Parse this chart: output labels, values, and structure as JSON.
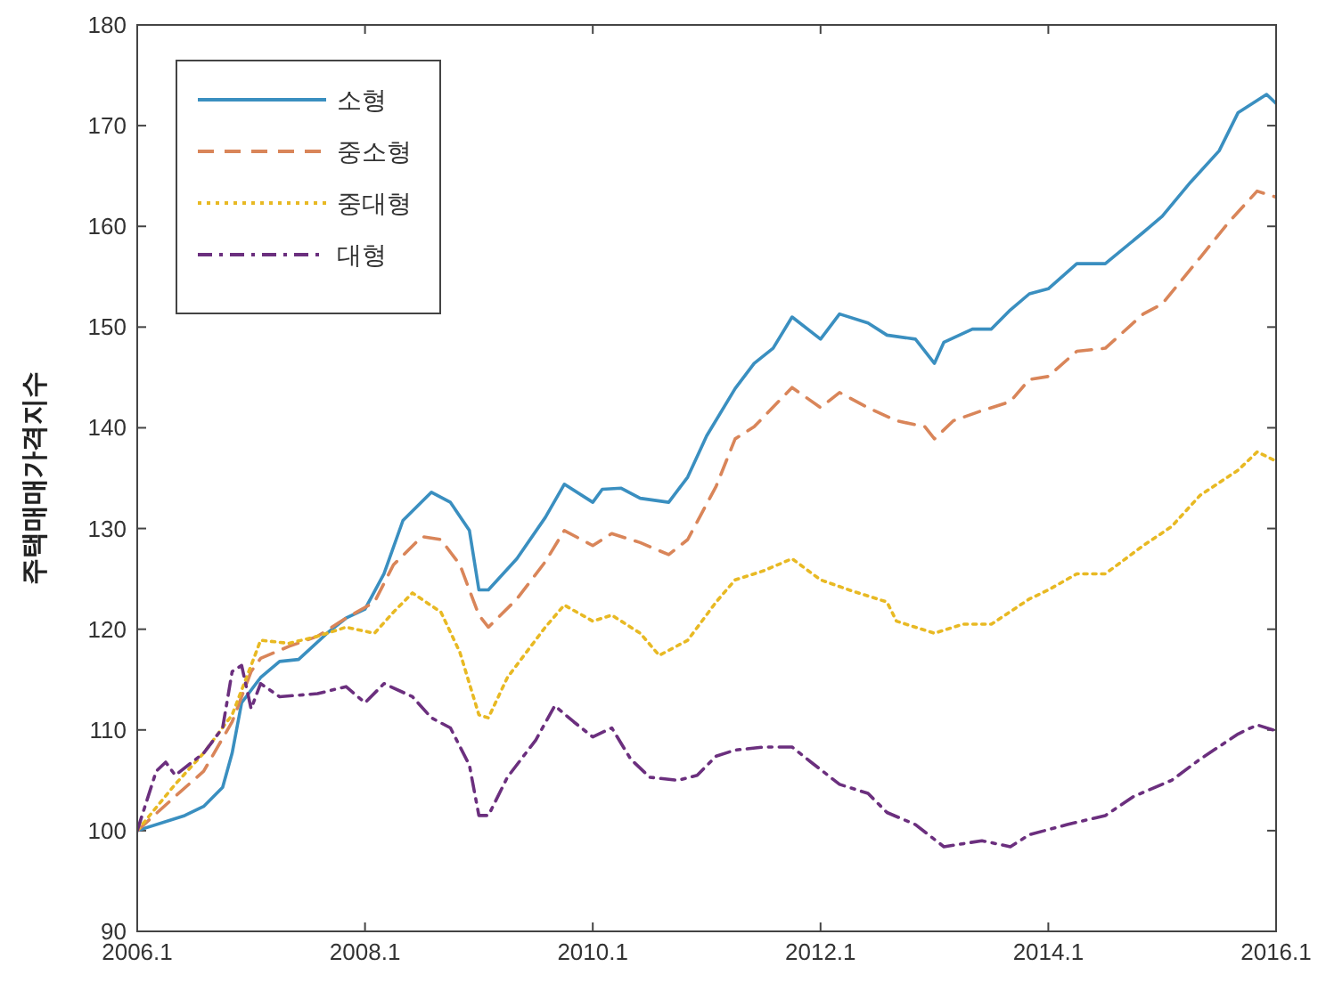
{
  "chart_data": {
    "type": "line",
    "ylabel": "주택매매가격지수",
    "xlim": [
      "2006-01",
      "2016-01"
    ],
    "ylim": [
      90,
      180
    ],
    "xticks": [
      {
        "value": "2006-01",
        "label": "2006.1"
      },
      {
        "value": "2008-01",
        "label": "2008.1"
      },
      {
        "value": "2010-01",
        "label": "2010.1"
      },
      {
        "value": "2012-01",
        "label": "2012.1"
      },
      {
        "value": "2014-01",
        "label": "2014.1"
      },
      {
        "value": "2016-01",
        "label": "2016.1"
      }
    ],
    "yticks": [
      90,
      100,
      110,
      120,
      130,
      140,
      150,
      160,
      170,
      180
    ],
    "grid": false,
    "legend": "top left",
    "series": [
      {
        "name": "소형",
        "color": "#3a8fc0",
        "line_style": "solid",
        "x": [
          "2006-01",
          "2006-06",
          "2006-08",
          "2006-10",
          "2006-11",
          "2006-12",
          "2007-02",
          "2007-04",
          "2007-06",
          "2007-09",
          "2007-11",
          "2008-01",
          "2008-03",
          "2008-05",
          "2008-08",
          "2008-10",
          "2008-12",
          "2009-01",
          "2009-02",
          "2009-05",
          "2009-08",
          "2009-10",
          "2010-01",
          "2010-02",
          "2010-04",
          "2010-06",
          "2010-09",
          "2010-11",
          "2011-01",
          "2011-04",
          "2011-06",
          "2011-08",
          "2011-10",
          "2012-01",
          "2012-03",
          "2012-06",
          "2012-08",
          "2012-11",
          "2013-01",
          "2013-02",
          "2013-05",
          "2013-07",
          "2013-09",
          "2013-11",
          "2014-01",
          "2014-04",
          "2014-07",
          "2014-11",
          "2015-01",
          "2015-04",
          "2015-07",
          "2015-09",
          "2015-12",
          "2016-01"
        ],
        "values": [
          100,
          101.5,
          102.4,
          104.3,
          107.7,
          112.7,
          115.2,
          116.8,
          117,
          119.6,
          121.1,
          122,
          125.5,
          130.8,
          133.6,
          132.6,
          129.8,
          123.9,
          123.9,
          127,
          131.1,
          134.4,
          132.6,
          133.9,
          134,
          133,
          132.6,
          135.1,
          139.2,
          143.9,
          146.4,
          147.9,
          151,
          148.8,
          151.3,
          150.4,
          149.2,
          148.8,
          146.4,
          148.5,
          149.8,
          149.8,
          151.7,
          153.3,
          153.8,
          156.3,
          156.3,
          159.4,
          161,
          164.4,
          167.5,
          171.3,
          173.1,
          172.2
        ]
      },
      {
        "name": "중소형",
        "color": "#d98559",
        "line_style": "dashed",
        "x": [
          "2006-01",
          "2006-05",
          "2006-08",
          "2006-11",
          "2007-01",
          "2007-02",
          "2007-05",
          "2007-08",
          "2007-11",
          "2008-02",
          "2008-04",
          "2008-07",
          "2008-09",
          "2008-11",
          "2009-01",
          "2009-02",
          "2009-05",
          "2009-08",
          "2009-10",
          "2010-01",
          "2010-03",
          "2010-06",
          "2010-09",
          "2010-11",
          "2011-02",
          "2011-04",
          "2011-06",
          "2011-10",
          "2012-01",
          "2012-03",
          "2012-06",
          "2012-09",
          "2012-12",
          "2013-01",
          "2013-03",
          "2013-06",
          "2013-09",
          "2013-11",
          "2014-01",
          "2014-04",
          "2014-07",
          "2014-11",
          "2015-01",
          "2015-05",
          "2015-08",
          "2015-11",
          "2016-01"
        ],
        "values": [
          100,
          103.4,
          105.9,
          110.8,
          115.8,
          117.1,
          118.3,
          119.3,
          121.1,
          122.7,
          126.4,
          129.2,
          128.9,
          126.4,
          121.4,
          120.2,
          123,
          126.7,
          129.8,
          128.3,
          129.5,
          128.6,
          127.4,
          128.9,
          134.2,
          138.9,
          140.1,
          144,
          142,
          143.5,
          142,
          140.7,
          140.1,
          138.9,
          140.7,
          141.7,
          142.6,
          144.8,
          145.1,
          147.6,
          147.9,
          151.3,
          152.3,
          156.9,
          160.4,
          163.5,
          162.9
        ]
      },
      {
        "name": "중대형",
        "color": "#e8b923",
        "line_style": "dotted",
        "x": [
          "2006-01",
          "2006-05",
          "2006-08",
          "2006-11",
          "2007-01",
          "2007-02",
          "2007-05",
          "2007-08",
          "2007-11",
          "2008-02",
          "2008-04",
          "2008-06",
          "2008-09",
          "2008-11",
          "2009-01",
          "2009-02",
          "2009-04",
          "2009-08",
          "2009-10",
          "2010-01",
          "2010-03",
          "2010-06",
          "2010-08",
          "2010-11",
          "2011-02",
          "2011-04",
          "2011-07",
          "2011-10",
          "2012-01",
          "2012-04",
          "2012-08",
          "2012-09",
          "2013-01",
          "2013-04",
          "2013-07",
          "2013-11",
          "2014-01",
          "2014-04",
          "2014-07",
          "2014-11",
          "2015-02",
          "2015-05",
          "2015-09",
          "2015-11",
          "2016-01"
        ],
        "values": [
          100,
          104.6,
          107.7,
          111.5,
          116.4,
          118.9,
          118.6,
          119.3,
          120.2,
          119.6,
          121.7,
          123.6,
          121.7,
          117.7,
          111.5,
          111.2,
          115.2,
          120.2,
          122.4,
          120.8,
          121.4,
          119.6,
          117.4,
          118.9,
          122.7,
          124.9,
          125.8,
          127,
          124.9,
          123.9,
          122.7,
          120.8,
          119.6,
          120.5,
          120.5,
          123,
          123.9,
          125.5,
          125.5,
          128.3,
          130.2,
          133.3,
          135.8,
          137.6,
          136.7
        ]
      },
      {
        "name": "대형",
        "color": "#6b2f7e",
        "line_style": "dashdot",
        "x": [
          "2006-01",
          "2006-03",
          "2006-04",
          "2006-05",
          "2006-08",
          "2006-10",
          "2006-11",
          "2006-12",
          "2007-01",
          "2007-02",
          "2007-04",
          "2007-08",
          "2007-11",
          "2008-01",
          "2008-03",
          "2008-06",
          "2008-08",
          "2008-10",
          "2008-12",
          "2009-01",
          "2009-02",
          "2009-04",
          "2009-07",
          "2009-09",
          "2009-11",
          "2010-01",
          "2010-03",
          "2010-05",
          "2010-07",
          "2010-10",
          "2010-12",
          "2011-02",
          "2011-04",
          "2011-07",
          "2011-10",
          "2011-12",
          "2012-03",
          "2012-06",
          "2012-08",
          "2012-11",
          "2013-02",
          "2013-06",
          "2013-09",
          "2013-11",
          "2014-03",
          "2014-07",
          "2014-10",
          "2015-02",
          "2015-05",
          "2015-09",
          "2015-11",
          "2016-01"
        ],
        "values": [
          100,
          105.9,
          106.8,
          105.5,
          107.7,
          110.2,
          115.8,
          116.4,
          112.1,
          114.6,
          113.3,
          113.6,
          114.3,
          112.7,
          114.6,
          113.3,
          111.2,
          110.2,
          106.5,
          101.5,
          101.5,
          105.3,
          109,
          112.4,
          110.8,
          109.3,
          110.2,
          107.1,
          105.3,
          105,
          105.5,
          107.4,
          108,
          108.3,
          108.3,
          106.8,
          104.6,
          103.7,
          101.8,
          100.6,
          98.4,
          99,
          98.4,
          99.6,
          100.6,
          101.5,
          103.4,
          105,
          107.1,
          109.6,
          110.5,
          109.9
        ]
      }
    ]
  }
}
